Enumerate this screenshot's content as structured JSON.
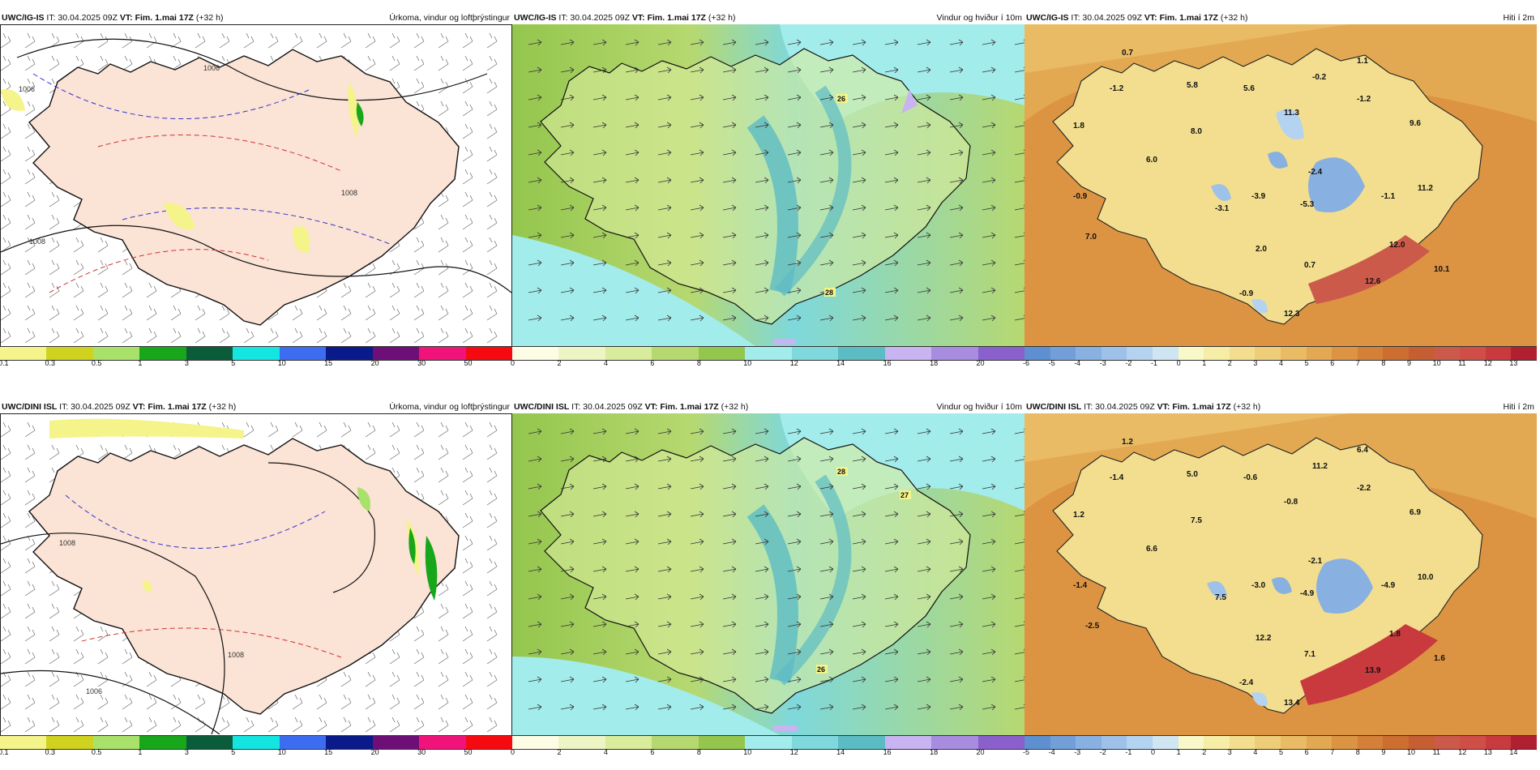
{
  "rows": [
    {
      "model": "UWC/IG-IS",
      "panels": [
        {
          "kind": "precip",
          "it": "IT: 30.04.2025 09Z",
          "vt_label": "VT:",
          "vt": "Fim. 1.mai 17Z",
          "lead": "(+32 h)",
          "title": "Úrkoma, vindur og loftþrýstingur",
          "isobars": [
            "1006",
            "1006",
            "1008",
            "1008"
          ]
        },
        {
          "kind": "wind",
          "it": "IT: 30.04.2025 09Z",
          "vt_label": "VT:",
          "vt": "Fim. 1.mai 17Z",
          "lead": "(+32 h)",
          "title": "Vindur og hviður í 10m",
          "gusts": [
            "26",
            "28"
          ]
        },
        {
          "kind": "temp",
          "it": "IT: 30.04.2025 09Z",
          "vt_label": "VT:",
          "vt": "Fim. 1.mai 17Z",
          "lead": "(+32 h)",
          "title": "Hiti í 2m",
          "temps": [
            "0.7",
            "1.1",
            "-1.2",
            "5.8",
            "5.6",
            "-0.2",
            "-1.2",
            "1.8",
            "11.3",
            "8.0",
            "9.6",
            "6.0",
            "-2.4",
            "11.2",
            "-0.9",
            "-3.1",
            "-3.9",
            "-5.3",
            "-1.1",
            "7.0",
            "2.0",
            "12.0",
            "0.7",
            "10.1",
            "12.6",
            "-0.9",
            "12.3"
          ]
        }
      ]
    },
    {
      "model": "UWC/DINI ISL",
      "panels": [
        {
          "kind": "precip",
          "it": "IT: 30.04.2025 09Z",
          "vt_label": "VT:",
          "vt": "Fim. 1.mai 17Z",
          "lead": "(+32 h)",
          "title": "Úrkoma, vindur og loftþrýstingur",
          "isobars": [
            "1008",
            "1008",
            "1006"
          ]
        },
        {
          "kind": "wind",
          "it": "IT: 30.04.2025 09Z",
          "vt_label": "VT:",
          "vt": "Fim. 1.mai 17Z",
          "lead": "(+32 h)",
          "title": "Vindur og hviður í 10m",
          "gusts": [
            "28",
            "27",
            "26"
          ]
        },
        {
          "kind": "temp",
          "it": "IT: 30.04.2025 09Z",
          "vt_label": "VT:",
          "vt": "Fim. 1.mai 17Z",
          "lead": "(+32 h)",
          "title": "Hiti í 2m",
          "temps": [
            "1.2",
            "6.4",
            "-1.4",
            "5.0",
            "-0.6",
            "11.2",
            "-2.2",
            "1.2",
            "-0.8",
            "7.5",
            "6.9",
            "6.6",
            "-2.1",
            "10.0",
            "-1.4",
            "7.5",
            "-3.0",
            "-4.9",
            "-4.9",
            "-2.5",
            "12.2",
            "1.8",
            "7.1",
            "1.6",
            "13.9",
            "-2.4",
            "13.4"
          ]
        }
      ]
    }
  ],
  "legends": {
    "precip": {
      "ticks": [
        "0.1",
        "0.3",
        "0.5",
        "1",
        "3",
        "5",
        "10",
        "15",
        "20",
        "30",
        "50"
      ],
      "colors": [
        "#f4f48a",
        "#cfd21e",
        "#a9e26a",
        "#18a61b",
        "#0b5c3a",
        "#15e5e0",
        "#3c6cf0",
        "#0a1a8a",
        "#6e0f78",
        "#f0137a",
        "#f50a10"
      ]
    },
    "wind": {
      "ticks": [
        "0",
        "2",
        "4",
        "6",
        "8",
        "10",
        "12",
        "14",
        "16",
        "18",
        "20"
      ],
      "colors": [
        "#fdfde6",
        "#eef5c4",
        "#d8ec9c",
        "#b6d870",
        "#94c64d",
        "#a3ecec",
        "#7ed8dc",
        "#5cbcc4",
        "#c8b4f0",
        "#a88ce0",
        "#8a60cc"
      ]
    },
    "temp_top": {
      "ticks": [
        "-6",
        "-5",
        "-4",
        "-3",
        "-2",
        "-1",
        "0",
        "1",
        "2",
        "3",
        "4",
        "5",
        "6",
        "7",
        "8",
        "9",
        "10",
        "11",
        "12",
        "13"
      ],
      "colors": [
        "#5e8fd0",
        "#739fd8",
        "#88b0e0",
        "#9dc1e8",
        "#b4d3f0",
        "#cfe6f2",
        "#f8f8c8",
        "#f6eea6",
        "#f2de8e",
        "#eecd78",
        "#e9bb64",
        "#e3a952",
        "#dc9442",
        "#d48038",
        "#cb6e30",
        "#c65e34",
        "#cc5a4a",
        "#d04e48",
        "#c83a3e",
        "#b02030"
      ]
    },
    "temp_bottom": {
      "ticks": [
        "-5",
        "-4",
        "-3",
        "-2",
        "-1",
        "0",
        "1",
        "2",
        "3",
        "4",
        "5",
        "6",
        "7",
        "8",
        "9",
        "10",
        "11",
        "12",
        "13",
        "14"
      ],
      "colors": [
        "#5e8fd0",
        "#739fd8",
        "#88b0e0",
        "#9dc1e8",
        "#b4d3f0",
        "#cfe6f2",
        "#f8f8c8",
        "#f6eea6",
        "#f2de8e",
        "#eecd78",
        "#e9bb64",
        "#e3a952",
        "#dc9442",
        "#d48038",
        "#cb6e30",
        "#c65e34",
        "#cc5a4a",
        "#d04e48",
        "#c83a3e",
        "#b02030"
      ]
    }
  }
}
